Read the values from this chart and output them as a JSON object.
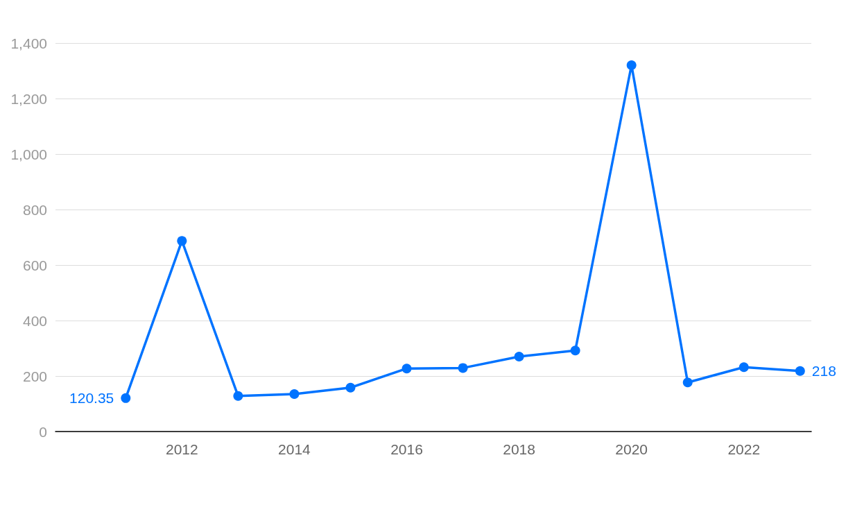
{
  "chart_data": {
    "type": "line",
    "x": [
      2011,
      2012,
      2013,
      2014,
      2015,
      2016,
      2017,
      2018,
      2019,
      2020,
      2021,
      2022,
      2023
    ],
    "series": [
      {
        "color": "#0073ff",
        "values": [
          120.35,
          687,
          128,
          135,
          158,
          227,
          229,
          270,
          292,
          1320,
          177,
          232,
          218
        ],
        "value_labels": [
          "120.35",
          null,
          null,
          null,
          null,
          null,
          null,
          null,
          null,
          null,
          null,
          null,
          "218"
        ]
      }
    ],
    "xlim": [
      2009.75,
      2023.2
    ],
    "xticks": [
      2012,
      2014,
      2016,
      2018,
      2020,
      2022
    ],
    "ylim": [
      0,
      1400
    ],
    "yticks": [
      0,
      200,
      400,
      600,
      800,
      {
        "value": 1000,
        "label": "1,000"
      },
      {
        "value": 1200,
        "label": "1,200"
      },
      {
        "value": 1400,
        "label": "1,400"
      }
    ],
    "grid": "y",
    "marker": "circle",
    "line_style": "solid"
  }
}
